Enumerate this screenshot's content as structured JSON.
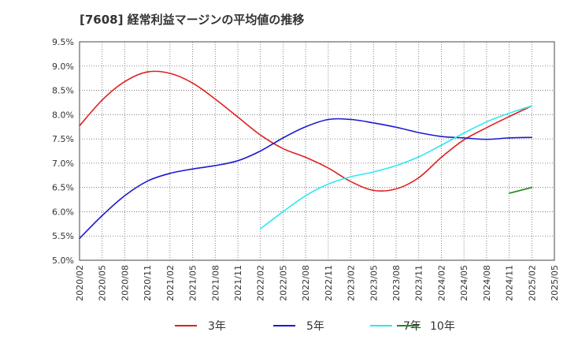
{
  "title": "[7608]  経常利益マージンの平均値の推移",
  "chart_data": {
    "type": "line",
    "title": "[7608]  経常利益マージンの平均値の推移",
    "xlabel": "",
    "ylabel": "",
    "x_tick_labels": [
      "2020/02",
      "2020/05",
      "2020/08",
      "2020/11",
      "2021/02",
      "2021/05",
      "2021/08",
      "2021/11",
      "2022/02",
      "2022/05",
      "2022/08",
      "2022/11",
      "2023/02",
      "2023/05",
      "2023/08",
      "2023/11",
      "2024/02",
      "2024/05",
      "2024/08",
      "2024/11",
      "2025/02",
      "2025/05"
    ],
    "y_tick_labels": [
      "5.0%",
      "5.5%",
      "6.0%",
      "6.5%",
      "7.0%",
      "7.5%",
      "8.0%",
      "8.5%",
      "9.0%",
      "9.5%"
    ],
    "ylim": [
      5.0,
      9.5
    ],
    "y_unit": "%",
    "grid": true,
    "legend_position": "bottom",
    "series": [
      {
        "name": "3年",
        "color": "#e02020",
        "x": [
          "2020/02",
          "2020/05",
          "2020/08",
          "2020/11",
          "2021/02",
          "2021/05",
          "2021/08",
          "2021/11",
          "2022/02",
          "2022/05",
          "2022/08",
          "2022/11",
          "2023/02",
          "2023/05",
          "2023/08",
          "2023/11",
          "2024/02",
          "2024/05",
          "2024/08",
          "2024/11",
          "2025/02"
        ],
        "values": [
          7.77,
          8.3,
          8.68,
          8.88,
          8.85,
          8.65,
          8.32,
          7.95,
          7.58,
          7.3,
          7.12,
          6.9,
          6.62,
          6.44,
          6.47,
          6.7,
          7.12,
          7.48,
          7.73,
          7.96,
          8.18
        ]
      },
      {
        "name": "5年",
        "color": "#1a1ad0",
        "x": [
          "2020/02",
          "2020/05",
          "2020/08",
          "2020/11",
          "2021/02",
          "2021/05",
          "2021/08",
          "2021/11",
          "2022/02",
          "2022/05",
          "2022/08",
          "2022/11",
          "2023/02",
          "2023/05",
          "2023/08",
          "2023/11",
          "2024/02",
          "2024/05",
          "2024/08",
          "2024/11",
          "2025/02"
        ],
        "values": [
          5.45,
          5.92,
          6.33,
          6.63,
          6.79,
          6.88,
          6.95,
          7.05,
          7.25,
          7.52,
          7.75,
          7.9,
          7.9,
          7.83,
          7.74,
          7.63,
          7.55,
          7.52,
          7.49,
          7.52,
          7.53
        ]
      },
      {
        "name": "7年",
        "color": "#2ee8f0",
        "x": [
          "2022/02",
          "2022/05",
          "2022/08",
          "2022/11",
          "2023/02",
          "2023/05",
          "2023/08",
          "2023/11",
          "2024/02",
          "2024/05",
          "2024/08",
          "2024/11",
          "2025/02"
        ],
        "values": [
          5.65,
          6.0,
          6.33,
          6.57,
          6.72,
          6.82,
          6.95,
          7.13,
          7.37,
          7.62,
          7.85,
          8.03,
          8.18
        ]
      },
      {
        "name": "10年",
        "color": "#228822",
        "x": [
          "2024/11",
          "2025/02"
        ],
        "values": [
          6.38,
          6.5
        ]
      }
    ]
  }
}
